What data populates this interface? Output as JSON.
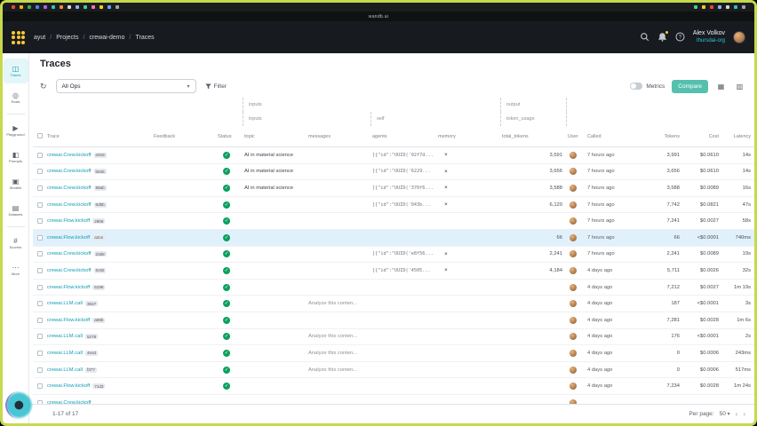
{
  "frame": {
    "recording_border_color": "#c6d94e"
  },
  "os_menu_bar": {
    "left_icon_colors": [
      "#e8453c",
      "#f5b400",
      "#34a853",
      "#4285f4",
      "#b065e0",
      "#2fc1c5",
      "#f58c32",
      "#d6d6d6",
      "#8ab4f8",
      "#34d399",
      "#f472b6",
      "#facc15",
      "#60a5fa",
      "#9ca3af"
    ],
    "right_icon_colors": [
      "#34d399",
      "#facc15",
      "#e8453c",
      "#8ab4f8",
      "#d6d6d6",
      "#2fc1c5",
      "#9ca3af"
    ]
  },
  "browser": {
    "address": "wandb.ai"
  },
  "topnav": {
    "breadcrumb": [
      "ayut",
      "Projects",
      "crewai-demo",
      "Traces"
    ],
    "user_name": "Alex Volkov",
    "user_org": "thursdai-org"
  },
  "sidebar": {
    "items": [
      {
        "label": "Traces",
        "icon": "traces-icon",
        "active": true
      },
      {
        "label": "Evals",
        "icon": "evals-icon"
      },
      {
        "divider": true
      },
      {
        "label": "Playground",
        "icon": "playground-icon"
      },
      {
        "label": "Prompts",
        "icon": "prompts-icon"
      },
      {
        "label": "Models",
        "icon": "models-icon"
      },
      {
        "label": "Datasets",
        "icon": "datasets-icon"
      },
      {
        "divider": true
      },
      {
        "label": "Scorers",
        "icon": "scorers-icon"
      },
      {
        "label": "More",
        "icon": "more-icon"
      }
    ]
  },
  "page": {
    "title": "Traces"
  },
  "toolbar": {
    "ops_selector_value": "All Ops",
    "filter_label": "Filter",
    "metrics_toggle_label": "Metrics",
    "compare_button_label": "Compare"
  },
  "table": {
    "group_header_row_1": [
      {
        "label": "inputs",
        "col_start": 5,
        "col_end": 9
      },
      {
        "label": "output",
        "col_start": 9,
        "col_end": 10
      }
    ],
    "group_header_row_2": [
      {
        "label": "inputs",
        "col_start": 5,
        "col_end": 7
      },
      {
        "label": "self",
        "col_start": 7,
        "col_end": 9
      },
      {
        "label": "token_usage",
        "col_start": 9,
        "col_end": 10
      }
    ],
    "columns": [
      "",
      "Trace",
      "Feedback",
      "Status",
      "topic",
      "messages",
      "agents",
      "memory",
      "total_tokens",
      "User",
      "Called",
      "Tokens",
      "Cost",
      "Latency"
    ],
    "rows": [
      {
        "trace": "crewai.Crew.kickoff",
        "badge": "e918",
        "status": "success",
        "topic": "AI in material science",
        "messages": "",
        "agents": "[{\"id\":\"UUID('02f7d...",
        "memory": "×",
        "total_tokens": "3,591",
        "called": "7 hours ago",
        "tokens": "3,991",
        "cost": "$0.0610",
        "latency": "14s",
        "selected": false
      },
      {
        "trace": "crewai.Crew.kickoff",
        "badge": "b845",
        "status": "success",
        "topic": "AI in material science",
        "messages": "",
        "agents": "[{\"id\":\"UUID('6229...",
        "memory": "×",
        "total_tokens": "3,656",
        "called": "7 hours ago",
        "tokens": "3,656",
        "cost": "$0.0610",
        "latency": "14s",
        "selected": false
      },
      {
        "trace": "crewai.Crew.kickoff",
        "badge": "98ab",
        "status": "success",
        "topic": "AI in material science",
        "messages": "",
        "agents": "[{\"id\":\"UUID('370f6...",
        "memory": "×",
        "total_tokens": "3,588",
        "called": "7 hours ago",
        "tokens": "3,588",
        "cost": "$0.0089",
        "latency": "16s",
        "selected": false
      },
      {
        "trace": "crewai.Crew.kickoff",
        "badge": "6d5b",
        "status": "success",
        "topic": "",
        "messages": "",
        "agents": "[{\"id\":\"UUID('043b...",
        "memory": "×",
        "total_tokens": "6,120",
        "called": "7 hours ago",
        "tokens": "7,742",
        "cost": "$0.0821",
        "latency": "47s",
        "selected": false
      },
      {
        "trace": "crewai.Flow.kickoff",
        "badge": "29b8",
        "status": "success",
        "topic": "",
        "messages": "",
        "agents": "",
        "memory": "",
        "total_tokens": "",
        "called": "7 hours ago",
        "tokens": "7,241",
        "cost": "$0.0027",
        "latency": "58s",
        "selected": false
      },
      {
        "trace": "crewai.Flow.kickoff",
        "badge": "a3ce",
        "status": "success",
        "topic": "",
        "messages": "",
        "agents": "",
        "memory": "",
        "total_tokens": "66",
        "called": "7 hours ago",
        "tokens": "66",
        "cost": "<$0.0001",
        "latency": "740ms",
        "selected": true
      },
      {
        "trace": "crewai.Crew.kickoff",
        "badge": "23d8",
        "status": "success",
        "topic": "",
        "messages": "",
        "agents": "[{\"id\":\"UUID('e8f56...",
        "memory": "×",
        "total_tokens": "2,241",
        "called": "7 hours ago",
        "tokens": "2,241",
        "cost": "$0.0089",
        "latency": "19s",
        "selected": false
      },
      {
        "trace": "crewai.Crew.kickoff",
        "badge": "6c82",
        "status": "success",
        "topic": "",
        "messages": "",
        "agents": "[{\"id\":\"UUID('4505...",
        "memory": "×",
        "total_tokens": "4,184",
        "called": "4 days ago",
        "tokens": "5,711",
        "cost": "$0.0026",
        "latency": "32s",
        "selected": false
      },
      {
        "trace": "crewai.Flow.kickoff",
        "badge": "6198",
        "status": "success",
        "topic": "",
        "messages": "",
        "agents": "",
        "memory": "",
        "total_tokens": "",
        "called": "4 days ago",
        "tokens": "7,212",
        "cost": "$0.0027",
        "latency": "1m 19s",
        "selected": false
      },
      {
        "trace": "crewai.LLM.call",
        "badge": "3647",
        "status": "success",
        "topic": "",
        "messages": "Analyze this conten...",
        "agents": "",
        "memory": "",
        "total_tokens": "",
        "called": "4 days ago",
        "tokens": "187",
        "cost": "<$0.0001",
        "latency": "3s",
        "selected": false
      },
      {
        "trace": "crewai.Flow.kickoff",
        "badge": "a98b",
        "status": "success",
        "topic": "",
        "messages": "",
        "agents": "",
        "memory": "",
        "total_tokens": "",
        "called": "4 days ago",
        "tokens": "7,281",
        "cost": "$0.0028",
        "latency": "1m 6s",
        "selected": false
      },
      {
        "trace": "crewai.LLM.call",
        "badge": "5278",
        "status": "success",
        "topic": "",
        "messages": "Analyze this conten...",
        "agents": "",
        "memory": "",
        "total_tokens": "",
        "called": "4 days ago",
        "tokens": "176",
        "cost": "<$0.0001",
        "latency": "2s",
        "selected": false
      },
      {
        "trace": "crewai.LLM.call",
        "badge": "4ea3",
        "status": "success",
        "topic": "",
        "messages": "Analyze this conten...",
        "agents": "",
        "memory": "",
        "total_tokens": "",
        "called": "4 days ago",
        "tokens": "0",
        "cost": "$0.0006",
        "latency": "243ms",
        "selected": false
      },
      {
        "trace": "crewai.LLM.call",
        "badge": "f377",
        "status": "success",
        "topic": "",
        "messages": "Analyze this conten...",
        "agents": "",
        "memory": "",
        "total_tokens": "",
        "called": "4 days ago",
        "tokens": "0",
        "cost": "$0.0006",
        "latency": "517ms",
        "selected": false
      },
      {
        "trace": "crewai.Flow.kickoff",
        "badge": "71d3",
        "status": "success",
        "topic": "",
        "messages": "",
        "agents": "",
        "memory": "",
        "total_tokens": "",
        "called": "4 days ago",
        "tokens": "7,234",
        "cost": "$0.0028",
        "latency": "1m 24s",
        "selected": false
      },
      {
        "trace": "crewai.Crew.kickoff",
        "badge": "",
        "status": "",
        "topic": "",
        "messages": "",
        "agents": "",
        "memory": "",
        "total_tokens": "",
        "called": "",
        "tokens": "",
        "cost": "",
        "latency": "",
        "selected": false
      }
    ]
  },
  "footer": {
    "range_label": "1-17 of 17",
    "per_page_label": "Per page:",
    "per_page_value": "50"
  }
}
